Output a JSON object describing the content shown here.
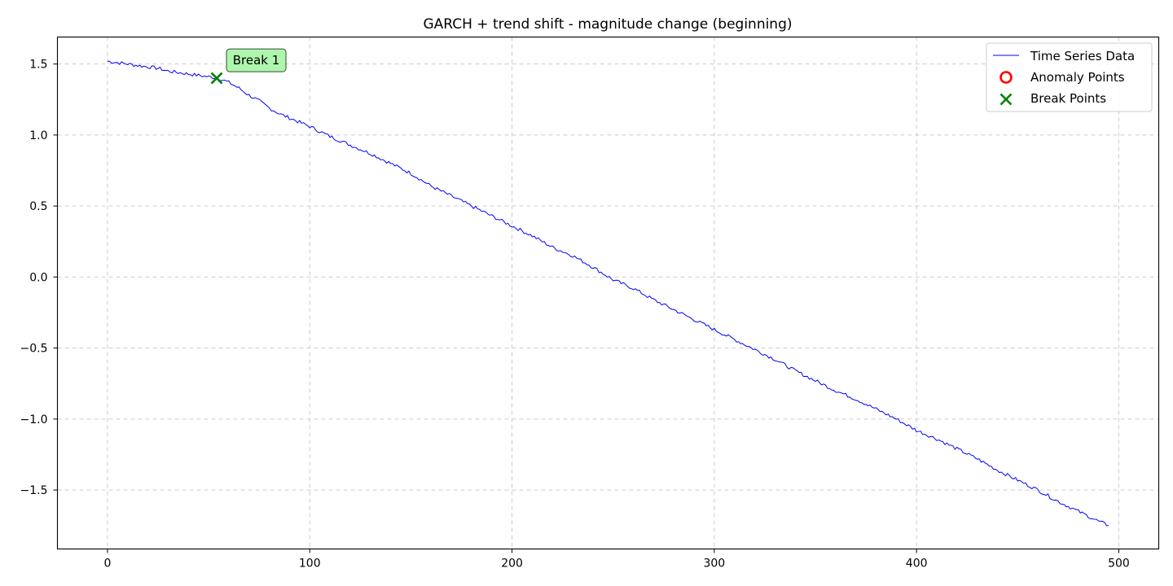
{
  "chart_data": {
    "type": "line",
    "title": "GARCH + trend shift - magnitude change (beginning)",
    "xlabel": "",
    "ylabel": "",
    "xlim": [
      -24.75,
      519.75
    ],
    "ylim": [
      -1.915,
      1.69
    ],
    "xticks": [
      0,
      100,
      200,
      300,
      400,
      500
    ],
    "yticks": [
      -1.5,
      -1.0,
      -0.5,
      0.0,
      0.5,
      1.0,
      1.5
    ],
    "ytick_labels": [
      "−1.5",
      "−1.0",
      "−0.5",
      "0.0",
      "0.5",
      "1.0",
      "1.5"
    ],
    "grid": true,
    "legend_position": "top-right",
    "series": [
      {
        "name": "Time Series Data",
        "color": "#0000ff",
        "x": [
          0,
          5,
          10,
          15,
          20,
          25,
          30,
          35,
          40,
          45,
          50,
          55,
          60,
          65,
          70,
          75,
          80,
          85,
          90,
          95,
          100,
          110,
          120,
          130,
          140,
          150,
          160,
          170,
          180,
          190,
          200,
          210,
          220,
          230,
          240,
          250,
          260,
          270,
          280,
          290,
          300,
          310,
          320,
          330,
          340,
          350,
          360,
          370,
          380,
          390,
          400,
          410,
          420,
          430,
          440,
          450,
          460,
          470,
          480,
          490,
          495
        ],
        "y": [
          1.52,
          1.51,
          1.5,
          1.49,
          1.48,
          1.47,
          1.45,
          1.44,
          1.43,
          1.42,
          1.41,
          1.4,
          1.37,
          1.33,
          1.28,
          1.24,
          1.19,
          1.15,
          1.12,
          1.09,
          1.06,
          0.99,
          0.93,
          0.87,
          0.8,
          0.73,
          0.64,
          0.57,
          0.5,
          0.43,
          0.36,
          0.29,
          0.21,
          0.15,
          0.07,
          -0.02,
          -0.08,
          -0.16,
          -0.23,
          -0.3,
          -0.37,
          -0.44,
          -0.51,
          -0.58,
          -0.66,
          -0.73,
          -0.8,
          -0.86,
          -0.93,
          -1.0,
          -1.08,
          -1.14,
          -1.21,
          -1.28,
          -1.36,
          -1.43,
          -1.5,
          -1.58,
          -1.65,
          -1.72,
          -1.75
        ]
      },
      {
        "name": "Anomaly Points",
        "color": "#ff0000",
        "marker": "circle",
        "x": [],
        "y": []
      },
      {
        "name": "Break Points",
        "color": "#008000",
        "marker": "x",
        "x": [
          54
        ],
        "y": [
          1.4
        ]
      }
    ],
    "annotations": [
      {
        "text": "Break 1",
        "x": 54,
        "y": 1.4,
        "box_color": "#aef5ae"
      }
    ]
  }
}
